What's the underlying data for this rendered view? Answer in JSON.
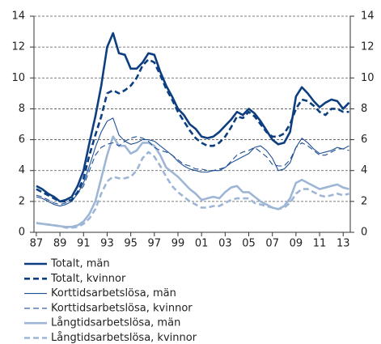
{
  "chart_data": {
    "type": "line",
    "x": [
      1987,
      1987.5,
      1988,
      1988.5,
      1989,
      1989.5,
      1990,
      1990.5,
      1991,
      1991.5,
      1992,
      1992.5,
      1993,
      1993.5,
      1994,
      1994.5,
      1995,
      1995.5,
      1996,
      1996.5,
      1997,
      1997.5,
      1998,
      1998.5,
      1999,
      1999.5,
      2000,
      2000.5,
      2001,
      2001.5,
      2002,
      2002.5,
      2003,
      2003.5,
      2004,
      2004.5,
      2005,
      2005.5,
      2006,
      2006.5,
      2007,
      2007.5,
      2008,
      2008.5,
      2009,
      2009.5,
      2010,
      2010.5,
      2011,
      2011.5,
      2012,
      2012.5,
      2013,
      2013.5
    ],
    "series": [
      {
        "name": "Totalt, män",
        "color": "#0d3f80",
        "width": 2.6,
        "dashed": false,
        "values": [
          3.0,
          2.8,
          2.5,
          2.3,
          2.0,
          2.1,
          2.3,
          3.0,
          4.0,
          5.8,
          7.5,
          9.5,
          12.0,
          12.9,
          11.6,
          11.5,
          10.6,
          10.6,
          11.0,
          11.6,
          11.5,
          10.4,
          9.5,
          8.8,
          8.0,
          7.6,
          7.0,
          6.7,
          6.2,
          6.1,
          6.2,
          6.5,
          6.9,
          7.3,
          7.8,
          7.6,
          8.0,
          7.7,
          7.2,
          6.6,
          6.0,
          5.7,
          5.8,
          6.5,
          8.8,
          9.4,
          9.0,
          8.5,
          8.1,
          8.4,
          8.6,
          8.5,
          8.0,
          8.4
        ]
      },
      {
        "name": "Totalt, kvinnor",
        "color": "#0d3f80",
        "width": 2.6,
        "dashed": true,
        "values": [
          2.8,
          2.6,
          2.4,
          2.2,
          2.0,
          2.0,
          2.1,
          2.6,
          3.5,
          5.0,
          6.3,
          7.5,
          9.0,
          9.2,
          9.0,
          9.2,
          9.5,
          10.0,
          10.8,
          11.2,
          11.0,
          10.2,
          9.3,
          8.6,
          7.8,
          7.2,
          6.6,
          6.1,
          5.8,
          5.6,
          5.6,
          5.8,
          6.2,
          6.8,
          7.5,
          7.4,
          7.8,
          7.5,
          7.0,
          6.5,
          6.2,
          6.2,
          6.4,
          7.0,
          8.0,
          8.6,
          8.5,
          8.2,
          7.8,
          7.6,
          8.0,
          8.0,
          7.8,
          7.8
        ]
      },
      {
        "name": "Korttidsarbetslösa, män",
        "color": "#1f4f95",
        "width": 1.1,
        "dashed": false,
        "values": [
          2.3,
          2.2,
          2.0,
          1.8,
          1.7,
          1.8,
          2.0,
          2.5,
          3.2,
          4.3,
          5.5,
          6.5,
          7.2,
          7.4,
          6.3,
          5.9,
          5.7,
          5.8,
          6.0,
          6.0,
          5.9,
          5.6,
          5.3,
          5.0,
          4.6,
          4.3,
          4.1,
          4.0,
          3.9,
          3.9,
          4.0,
          4.0,
          4.2,
          4.5,
          4.7,
          4.9,
          5.1,
          5.5,
          5.6,
          5.3,
          4.8,
          4.0,
          4.1,
          4.5,
          5.5,
          6.1,
          5.8,
          5.4,
          5.1,
          5.2,
          5.3,
          5.5,
          5.4,
          5.6
        ]
      },
      {
        "name": "Korttidsarbetslösa, kvinnor",
        "color": "#1f4f95",
        "width": 1.1,
        "dashed": true,
        "values": [
          2.4,
          2.3,
          2.1,
          1.9,
          1.8,
          1.9,
          2.1,
          2.5,
          3.0,
          4.0,
          5.0,
          5.5,
          5.7,
          5.8,
          5.6,
          5.9,
          6.1,
          6.2,
          6.1,
          5.9,
          5.5,
          5.3,
          5.2,
          5.0,
          4.7,
          4.4,
          4.3,
          4.1,
          4.1,
          4.0,
          4.0,
          4.1,
          4.2,
          4.6,
          5.0,
          5.2,
          5.3,
          5.5,
          5.2,
          4.9,
          4.4,
          4.3,
          4.3,
          4.7,
          5.5,
          5.8,
          5.6,
          5.3,
          5.0,
          5.0,
          5.2,
          5.4,
          5.4,
          5.3
        ]
      },
      {
        "name": "Långtidsarbetslösa, män",
        "color": "#9db6d5",
        "width": 2.6,
        "dashed": false,
        "values": [
          0.6,
          0.55,
          0.5,
          0.45,
          0.4,
          0.35,
          0.35,
          0.45,
          0.7,
          1.2,
          2.0,
          3.5,
          5.0,
          6.2,
          5.6,
          5.6,
          5.1,
          5.3,
          5.8,
          5.8,
          5.6,
          5.0,
          4.2,
          3.9,
          3.6,
          3.2,
          2.8,
          2.5,
          2.1,
          2.2,
          2.3,
          2.2,
          2.6,
          2.9,
          3.0,
          2.6,
          2.6,
          2.3,
          2.0,
          1.8,
          1.6,
          1.5,
          1.7,
          2.2,
          3.2,
          3.4,
          3.2,
          3.0,
          2.8,
          2.9,
          3.0,
          3.1,
          2.9,
          2.8
        ]
      },
      {
        "name": "Långtidsarbetslösa, kvinnor",
        "color": "#9db6d5",
        "width": 2.6,
        "dashed": true,
        "values": [
          0.6,
          0.55,
          0.5,
          0.45,
          0.4,
          0.3,
          0.3,
          0.35,
          0.55,
          0.9,
          1.5,
          2.5,
          3.3,
          3.6,
          3.5,
          3.5,
          3.6,
          4.0,
          4.8,
          5.2,
          4.9,
          4.3,
          3.6,
          3.0,
          2.6,
          2.3,
          2.0,
          1.8,
          1.6,
          1.6,
          1.7,
          1.7,
          1.9,
          2.1,
          2.2,
          2.2,
          2.2,
          1.9,
          1.8,
          1.7,
          1.6,
          1.5,
          1.6,
          1.9,
          2.5,
          2.8,
          2.8,
          2.6,
          2.4,
          2.3,
          2.4,
          2.5,
          2.4,
          2.5
        ]
      }
    ],
    "xlim": [
      1986.8,
      2013.6
    ],
    "xticks": [
      {
        "value": 1987,
        "label": "87"
      },
      {
        "value": 1989,
        "label": "89"
      },
      {
        "value": 1991,
        "label": "91"
      },
      {
        "value": 1993,
        "label": "93"
      },
      {
        "value": 1995,
        "label": "95"
      },
      {
        "value": 1997,
        "label": "97"
      },
      {
        "value": 1999,
        "label": "99"
      },
      {
        "value": 2001,
        "label": "01"
      },
      {
        "value": 2003,
        "label": "03"
      },
      {
        "value": 2005,
        "label": "05"
      },
      {
        "value": 2007,
        "label": "07"
      },
      {
        "value": 2009,
        "label": "09"
      },
      {
        "value": 2011,
        "label": "11"
      },
      {
        "value": 2013,
        "label": "13"
      }
    ],
    "ylim": [
      0,
      14
    ],
    "yticks": [
      0,
      2,
      4,
      6,
      8,
      10,
      12,
      14
    ],
    "y2lim": [
      0,
      14
    ],
    "y2ticks": [
      0,
      2,
      4,
      6,
      8,
      10,
      12,
      14
    ],
    "grid": true,
    "legend": "bottom"
  }
}
